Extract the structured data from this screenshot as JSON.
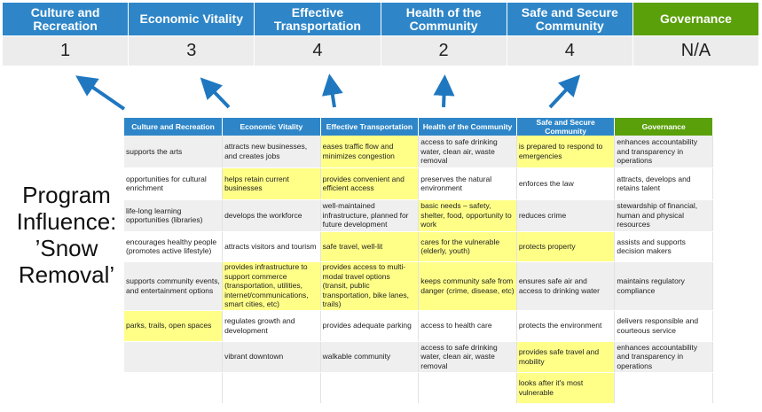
{
  "colors": {
    "header_blue": "#2e86c8",
    "governance_green": "#5aa00a",
    "highlight_yellow": "#ffff88",
    "arrow_blue": "#1f77c0"
  },
  "summary": {
    "headers": [
      "Culture and Recreation",
      "Economic Vitality",
      "Effective Transportation",
      "Health of the Community",
      "Safe and Secure Community",
      "Governance"
    ],
    "scores": [
      "1",
      "3",
      "4",
      "2",
      "4",
      "N/A"
    ]
  },
  "program_label": "Program Influence: ’Snow Removal’",
  "table": {
    "headers": [
      "Culture and Recreation",
      "Economic Vitality",
      "Effective Transportation",
      "Health of the Community",
      "Safe and Secure Community",
      "Governance"
    ],
    "rows": [
      [
        "supports the arts",
        "attracts new businesses, and creates jobs",
        "eases traffic flow and minimizes congestion",
        "access to safe drinking water, clean air, waste removal",
        "is prepared to respond to emergencies",
        "enhances accountability and transparency in operations"
      ],
      [
        "opportunities for cultural enrichment",
        "helps retain current businesses",
        "provides convenient and efficient access",
        "preserves the natural environment",
        "enforces the law",
        "attracts, develops and retains talent"
      ],
      [
        "life-long learning opportunities (libraries)",
        "develops the workforce",
        "well-maintained infrastructure, planned for future development",
        "basic needs – safety, shelter, food, opportunity to work",
        "reduces crime",
        "stewardship of financial, human and physical resources"
      ],
      [
        "encourages healthy people (promotes active lifestyle)",
        "attracts visitors and tourism",
        "safe travel, well-lit",
        "cares for the vulnerable (elderly, youth)",
        "protects property",
        "assists and supports decision makers"
      ],
      [
        "supports community events, and entertainment options",
        "provides infrastructure to support commerce (transportation, utilities, internet/communications, smart cities, etc)",
        "provides access to multi-modal travel options (transit, public transportation, bike lanes, trails)",
        "keeps community safe from danger (crime, disease, etc)",
        "ensures safe air and access to drinking water",
        "maintains regulatory compliance"
      ],
      [
        "parks, trails, open spaces",
        "regulates growth and development",
        "provides adequate parking",
        "access to health care",
        "protects the environment",
        "delivers responsible and courteous service"
      ],
      [
        "",
        "vibrant downtown",
        "walkable community",
        "access to safe drinking water, clean air, waste removal",
        "provides safe travel and mobility",
        "enhances accountability and transparency in operations"
      ],
      [
        "",
        "",
        "",
        "",
        "looks after it's most vulnerable",
        ""
      ]
    ],
    "highlighted": [
      [
        2,
        4
      ],
      [
        1,
        2
      ],
      [
        3
      ],
      [
        2,
        3,
        4
      ],
      [
        1,
        2,
        3
      ],
      [
        0
      ],
      [
        4
      ],
      [
        4
      ]
    ]
  }
}
